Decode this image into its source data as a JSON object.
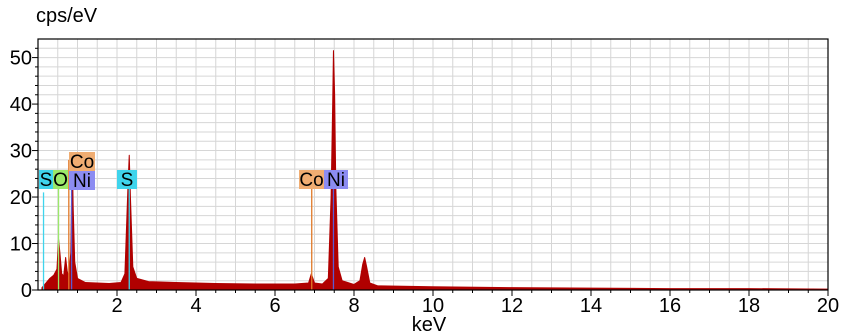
{
  "chart_data": {
    "type": "area",
    "title": "",
    "xlabel": "keV",
    "ylabel": "cps/eV",
    "xlim": [
      0,
      20
    ],
    "ylim": [
      0,
      54
    ],
    "grid": true,
    "x_ticks": [
      2,
      4,
      6,
      8,
      10,
      12,
      14,
      16,
      18,
      20
    ],
    "y_ticks": [
      0,
      10,
      20,
      30,
      40,
      50
    ],
    "spectrum_color": "#b00000",
    "series": [
      {
        "values": [
          [
            0.1,
            0.5
          ],
          [
            0.2,
            1.5
          ],
          [
            0.3,
            2.5
          ],
          [
            0.4,
            3.2
          ],
          [
            0.48,
            4.5
          ],
          [
            0.52,
            11
          ],
          [
            0.56,
            7.5
          ],
          [
            0.6,
            3.5
          ],
          [
            0.65,
            3
          ],
          [
            0.7,
            7
          ],
          [
            0.74,
            4
          ],
          [
            0.78,
            3
          ],
          [
            0.83,
            8
          ],
          [
            0.85,
            20
          ],
          [
            0.87,
            28
          ],
          [
            0.89,
            18
          ],
          [
            0.93,
            6
          ],
          [
            1.0,
            2.5
          ],
          [
            1.2,
            1.6
          ],
          [
            1.5,
            1.5
          ],
          [
            1.8,
            1.4
          ],
          [
            2.1,
            1.6
          ],
          [
            2.2,
            3.5
          ],
          [
            2.28,
            23
          ],
          [
            2.31,
            29
          ],
          [
            2.34,
            20
          ],
          [
            2.4,
            5
          ],
          [
            2.5,
            2.5
          ],
          [
            2.8,
            1.8
          ],
          [
            3.5,
            1.6
          ],
          [
            4.5,
            1.4
          ],
          [
            5.5,
            1.3
          ],
          [
            6.5,
            1.3
          ],
          [
            6.85,
            1.5
          ],
          [
            6.92,
            3.5
          ],
          [
            7.0,
            1.5
          ],
          [
            7.2,
            1.3
          ],
          [
            7.35,
            2.5
          ],
          [
            7.42,
            20
          ],
          [
            7.46,
            40
          ],
          [
            7.48,
            51.5
          ],
          [
            7.51,
            42
          ],
          [
            7.54,
            22
          ],
          [
            7.6,
            5
          ],
          [
            7.7,
            2
          ],
          [
            8.0,
            1.2
          ],
          [
            8.15,
            2
          ],
          [
            8.22,
            5.5
          ],
          [
            8.27,
            7
          ],
          [
            8.32,
            5
          ],
          [
            8.4,
            1.5
          ],
          [
            8.6,
            0.9
          ],
          [
            10,
            0.7
          ],
          [
            12,
            0.5
          ],
          [
            14,
            0.4
          ],
          [
            16,
            0.3
          ],
          [
            18,
            0.3
          ],
          [
            20,
            0.2
          ]
        ]
      }
    ],
    "element_markers": [
      {
        "label": "S",
        "x": 0.14,
        "bg": "#3fd4ec",
        "line": "#3fd4ec",
        "height": 21
      },
      {
        "label": "O",
        "x": 0.52,
        "bg": "#9be86a",
        "line": "#9be86a",
        "height": 24
      },
      {
        "label": "Co",
        "x": 0.78,
        "bg": "#f0ad72",
        "line": "#e07828",
        "height": 28
      },
      {
        "label": "Ni",
        "x": 0.85,
        "bg": "#8c8cf2",
        "line": "#5a5ad2",
        "height": 25
      },
      {
        "label": "S",
        "x": 2.31,
        "bg": "#3fd4ec",
        "line": "#3fd4ec",
        "height": 25
      },
      {
        "label": "Co",
        "x": 6.93,
        "bg": "#f0ad72",
        "line": "#e07828",
        "height": 22
      },
      {
        "label": "Ni",
        "x": 7.48,
        "bg": "#8c8cf2",
        "line": "#5a5ad2",
        "height": 22
      }
    ]
  }
}
